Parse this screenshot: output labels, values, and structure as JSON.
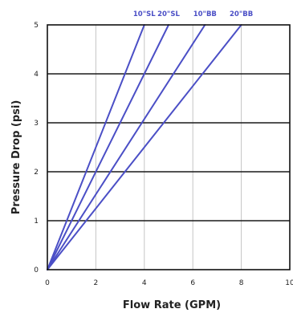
{
  "chart_data": {
    "type": "line",
    "title": "",
    "xlabel": "Flow Rate (GPM)",
    "ylabel": "Pressure Drop (psi)",
    "xlim": [
      0,
      10
    ],
    "ylim": [
      0,
      5
    ],
    "x_ticks": [
      "0",
      "2",
      "4",
      "6",
      "8",
      "10"
    ],
    "y_ticks": [
      "0",
      "1",
      "2",
      "3",
      "4",
      "5"
    ],
    "grid": {
      "horizontal": true,
      "vertical": true
    },
    "legend": "top",
    "line_color": "#4b4fc6",
    "series": [
      {
        "name": "10\"SL",
        "x": [
          0,
          4.0
        ],
        "y": [
          0,
          5
        ]
      },
      {
        "name": "20\"SL",
        "x": [
          0,
          5.0
        ],
        "y": [
          0,
          5
        ]
      },
      {
        "name": "10\"BB",
        "x": [
          0,
          6.5
        ],
        "y": [
          0,
          5
        ]
      },
      {
        "name": "20\"BB",
        "x": [
          0,
          8.0
        ],
        "y": [
          0,
          5
        ]
      }
    ]
  }
}
